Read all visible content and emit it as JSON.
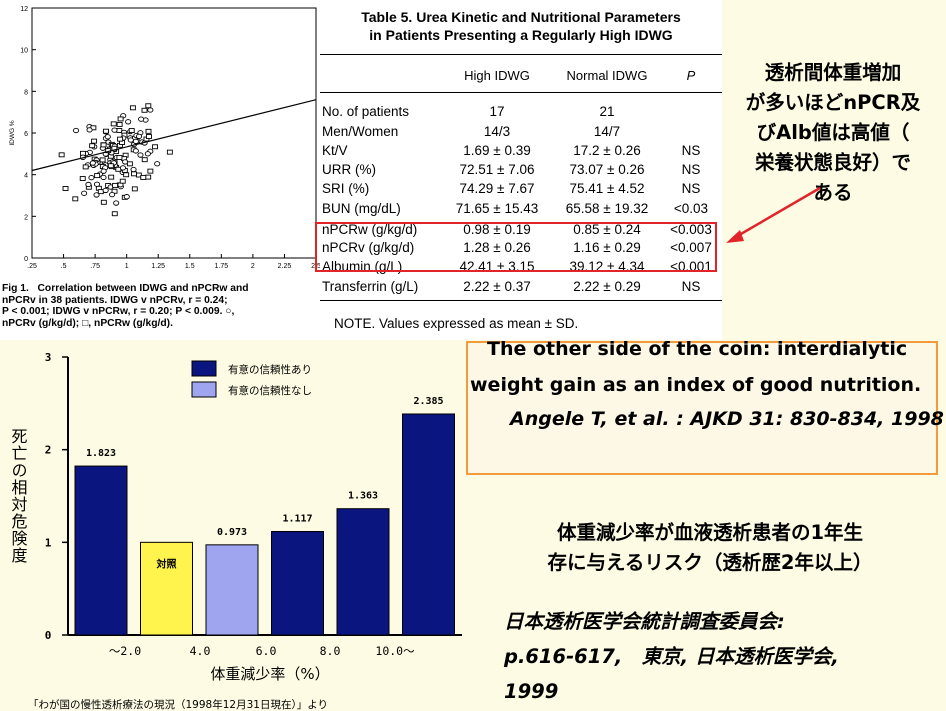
{
  "figure1": {
    "y_axis_label": "IDWG %",
    "y_ticks": [
      "12",
      "10",
      "8",
      "6",
      "4",
      "2",
      "0"
    ],
    "x_ticks": [
      ".25",
      ".5",
      ".75",
      "1",
      "1.25",
      "1.5",
      "1.75",
      "2",
      "2.25",
      "2.5"
    ],
    "caption_label": "Fig 1.",
    "caption_line1": "Correlation between IDWG and nPCRw and",
    "caption_line2": "nPCRv in 38 patients. IDWG v nPCRv, r = 0.24;",
    "caption_line3": "P < 0.001; IDWG v nPCRw, r = 0.20; P < 0.009. ○,",
    "caption_line4": "nPCRv (g/kg/d); □, nPCRw (g/kg/d).",
    "chart_data": {
      "type": "scatter",
      "xlim": [
        0.25,
        2.5
      ],
      "ylim": [
        0,
        12
      ],
      "trend_line": {
        "x": [
          0.25,
          2.5
        ],
        "y": [
          4.2,
          7.6
        ]
      }
    }
  },
  "table5": {
    "title_line1": "Table 5.  Urea Kinetic and Nutritional Parameters",
    "title_line2": "in Patients Presenting a Regularly High IDWG",
    "columns": [
      "High IDWG",
      "Normal IDWG",
      "P"
    ],
    "rows": [
      [
        "No. of patients",
        "17",
        "21",
        ""
      ],
      [
        "Men/Women",
        "14/3",
        "14/7",
        ""
      ],
      [
        "Kt/V",
        "1.69 ± 0.39",
        "17.2 ± 0.26",
        "NS"
      ],
      [
        "URR (%)",
        "72.51 ± 7.06",
        "73.07 ± 0.26",
        "NS"
      ],
      [
        "SRI (%)",
        "74.29 ± 7.67",
        "75.41 ± 4.52",
        "NS"
      ],
      [
        "BUN (mg/dL)",
        "71.65 ± 15.43",
        "65.58 ± 19.32",
        "<0.03"
      ],
      [
        "nPCRw (g/kg/d)",
        "0.98 ± 0.19",
        "0.85 ± 0.24",
        "<0.003"
      ],
      [
        "nPCRv (g/kg/d)",
        "1.28 ± 0.26",
        "1.16 ± 0.29",
        "<0.007"
      ],
      [
        "Albumin (g/L)",
        "42.41 ± 3.15",
        "39.12 ± 4.34",
        "<0.001"
      ],
      [
        "Transferrin (g/L)",
        "2.22 ± 0.37",
        "2.22 ± 0.29",
        "NS"
      ]
    ],
    "note": "NOTE. Values expressed as mean ± SD."
  },
  "annotation_jp": [
    "透析間体重増加",
    "が多いほどnPCR及",
    "びAlb値は高値（",
    "栄養状態良好）で",
    "ある"
  ],
  "english": {
    "line1": "The other side of the coin: interdialytic",
    "line2": "weight gain as an index of good nutrition.",
    "citation": "Angele T, et al. : AJKD 31: 830-834, 1998"
  },
  "bar_chart": {
    "chart_data": {
      "type": "bar",
      "categories": [
        "～2.0",
        "",
        "4.0",
        "6.0",
        "8.0",
        "10.0～"
      ],
      "values": [
        1.823,
        1.0,
        0.973,
        1.117,
        1.363,
        2.385
      ],
      "value_labels": [
        "1.823",
        "対照",
        "0.973",
        "1.117",
        "1.363",
        "2.385"
      ],
      "xlabel": "体重減少率（%）",
      "ylabel": "死亡の相対危険度",
      "ylim": [
        0,
        3
      ],
      "y_ticks": [
        "0",
        "1",
        "2",
        "3"
      ],
      "legend": [
        "有意の信頼性あり",
        "有意の信頼性なし"
      ]
    },
    "colors": {
      "significant": "#0b1580",
      "not_significant": "#9fa5ee",
      "reference": "#fff34d"
    },
    "source": "「わが国の慢性透析療法の現況（1998年12月31日現在）」より"
  },
  "risk_text": [
    "体重減少率が血液透析患者の1年生",
    "存に与えるリスク（透析歴2年以上）"
  ],
  "society_citation": [
    "日本透析医学会統計調査委員会:",
    "p.616-617,　東京, 日本透析医学会,",
    "1999"
  ]
}
